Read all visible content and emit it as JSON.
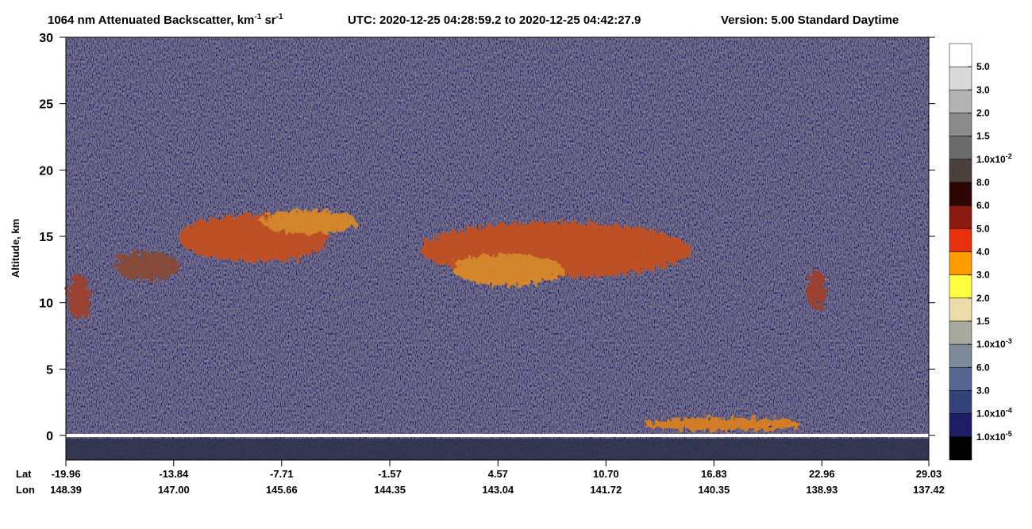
{
  "chart_data": {
    "type": "curtain",
    "title": [
      "1064 nm Attenuated Backscatter, km",
      "-1",
      " sr",
      "-1"
    ],
    "subtitle": "UTC:  2020-12-25 04:28:59.2  to  2020-12-25 04:42:27.9",
    "version": "Version: 5.00  Standard  Daytime",
    "ylabel": "Altitude, km",
    "ylim": [
      -1.85,
      30
    ],
    "yticks": [
      0,
      5,
      10,
      15,
      20,
      25,
      30
    ],
    "xlim": [
      -19.96,
      29.03
    ],
    "lat_label": "Lat",
    "lon_label": "Lon",
    "lat": [
      -19.96,
      -13.84,
      -7.71,
      -1.57,
      4.57,
      {
        "value": 10.7,
        "label": "10.70"
      },
      16.83,
      22.96,
      29.03
    ],
    "lon": [
      148.39,
      {
        "value": 147,
        "label": "147.00"
      },
      145.66,
      144.35,
      143.04,
      141.72,
      140.35,
      138.93,
      137.42
    ],
    "colorbar": {
      "colors": [
        "#ffffff",
        "#d9d9d9",
        "#b3b3b3",
        "#8c8c8c",
        "#6b6b6b",
        "#4a403d",
        "#2e0505",
        "#8a1a12",
        "#e8300c",
        "#ff9d00",
        "#ffff40",
        "#ecdcaa",
        "#a8aaa0",
        "#7d8a9a",
        "#566690",
        "#34427a",
        "#1e1e66",
        "#000000"
      ],
      "labels": [
        "5.0",
        "3.0",
        "2.0",
        "1.5",
        {
          "base": "1.0x10",
          "exp": "-2"
        },
        "8.0",
        "6.0",
        "5.0",
        "4.0",
        "3.0",
        "2.0",
        "1.5",
        {
          "base": "1.0x10",
          "exp": "-3"
        },
        "6.0",
        "3.0",
        {
          "base": "1.0x10",
          "exp": "-4"
        },
        {
          "base": "1.0x10",
          "exp": "-5"
        }
      ]
    }
  }
}
